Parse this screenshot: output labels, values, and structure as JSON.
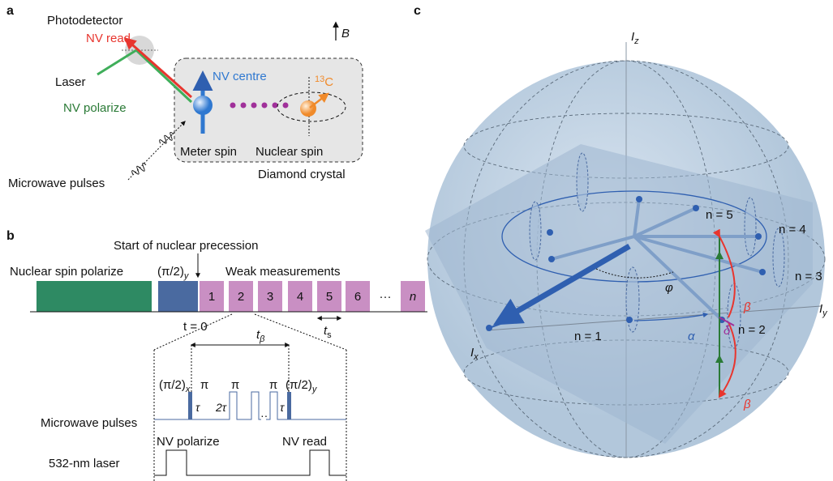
{
  "panel_a": {
    "label": "a",
    "photodetector": "Photodetector",
    "nv_read": "NV read",
    "field": "B",
    "laser": "Laser",
    "nv_centre": "NV centre",
    "carbon": {
      "sup": "13",
      "text": "C"
    },
    "nv_polarize": "NV  polarize",
    "meter_spin": "Meter spin",
    "nuclear_spin": "Nuclear spin",
    "crystal": "Diamond crystal",
    "microwave": "Microwave pulses"
  },
  "panel_b": {
    "label": "b",
    "start": "Start of nuclear precession",
    "polarize": "Nuclear spin polarize",
    "rotation": {
      "text": "(π/2)",
      "sub": "y"
    },
    "weak": "Weak measurements",
    "pulses": [
      "1",
      "2",
      "3",
      "4",
      "5",
      "6",
      "···",
      "n"
    ],
    "t0": "t = 0",
    "ts": {
      "text": "t",
      "sub": "s"
    },
    "tbeta": {
      "text": "t",
      "sub": "β"
    },
    "pulse_labels": [
      {
        "text": "(π/2)",
        "sub": "x"
      },
      {
        "text": "π"
      },
      {
        "text": "π"
      },
      {
        "text": "π"
      },
      {
        "text": "(π/2)",
        "sub": "y"
      }
    ],
    "gaps": [
      "τ",
      "2τ",
      "τ"
    ],
    "microwave": "Microwave pulses",
    "nv_polarize": "NV polarize",
    "nv_read": "NV read",
    "laser": "532-nm laser"
  },
  "panel_c": {
    "label": "c",
    "iz": {
      "text": "I",
      "sub": "z"
    },
    "ix": {
      "text": "I",
      "sub": "x"
    },
    "iy": {
      "text": "I",
      "sub": "y"
    },
    "n_labels": [
      "n = 5",
      "n = 4",
      "n = 3",
      "n = 2",
      "n = 1"
    ],
    "phi": "φ",
    "beta_top": "β",
    "beta_bottom": "β",
    "delta": "δ",
    "alpha": "α"
  }
}
